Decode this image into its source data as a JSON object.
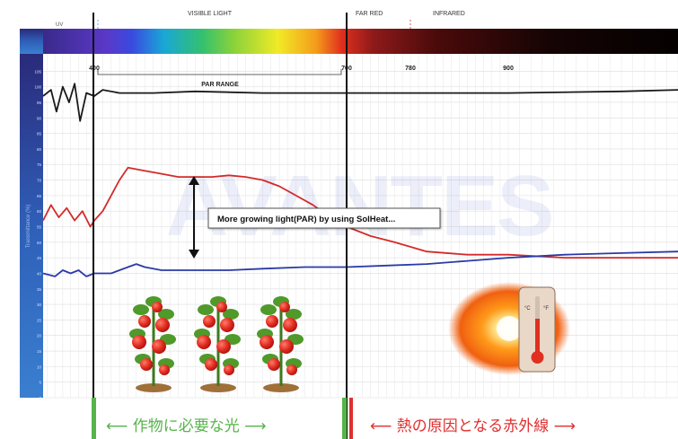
{
  "header": {
    "uv": "UV",
    "visible_light": "VISIBLE LIGHT",
    "far_red": "FAR RED",
    "infrared": "INFRARED"
  },
  "annotation": "More growing light(PAR) by using SolHeat...",
  "par_range_label": "PAR RANGE",
  "y_axis_label": "Transmittance (%)",
  "watermark": "AVANTES",
  "bottom_labels": {
    "left": "⟵  作物に必要な光  ⟶",
    "right": "⟵  熱の原因となる赤外線  ⟶"
  },
  "colors": {
    "green": "#56b44a",
    "red": "#e03030",
    "black_line": "#1a1a1a",
    "red_line": "#d42a2a",
    "blue_line": "#2a3aa8"
  },
  "icons": [
    "tomato-plant-icon",
    "tomato-plant-icon",
    "tomato-plant-icon",
    "thermometer-sun-icon"
  ],
  "chart_data": {
    "type": "line",
    "title": "",
    "xlabel": "",
    "ylabel": "Transmittance (%)",
    "x_ticks": [
      400,
      700,
      780,
      900
    ],
    "y_ticks": [
      0,
      5,
      10,
      15,
      20,
      25,
      30,
      35,
      40,
      45,
      50,
      55,
      60,
      65,
      70,
      75,
      80,
      85,
      90,
      95,
      100,
      105
    ],
    "xlim": [
      335,
      1050
    ],
    "ylim": [
      0,
      110
    ],
    "grid": true,
    "markers": [
      400,
      700
    ],
    "series": [
      {
        "color": "#1a1a1a",
        "x": [
          335,
          345,
          352,
          360,
          368,
          375,
          382,
          390,
          400,
          410,
          430,
          470,
          520,
          600,
          680,
          700,
          750,
          800,
          900,
          1000,
          1050
        ],
        "y": [
          97,
          99,
          92,
          100,
          95,
          101,
          89,
          98,
          97,
          99,
          98,
          98,
          98.5,
          98,
          98,
          98,
          98,
          98,
          98,
          98.5,
          99
        ]
      },
      {
        "color": "#d42a2a",
        "x": [
          335,
          345,
          355,
          365,
          375,
          385,
          395,
          400,
          410,
          420,
          430,
          440,
          460,
          480,
          500,
          520,
          540,
          560,
          580,
          600,
          620,
          640,
          660,
          680,
          700,
          730,
          760,
          800,
          850,
          900,
          950,
          1000,
          1050
        ],
        "y": [
          57,
          62,
          58,
          61,
          57,
          60,
          55,
          57,
          60,
          65,
          70,
          74,
          73,
          72,
          71,
          71,
          71,
          71.5,
          71,
          70,
          68,
          65,
          62,
          58,
          55,
          52,
          50,
          47,
          46,
          46,
          45,
          45,
          45
        ]
      },
      {
        "color": "#2a3aa8",
        "x": [
          335,
          350,
          360,
          370,
          380,
          390,
          400,
          420,
          430,
          440,
          450,
          460,
          480,
          520,
          560,
          600,
          650,
          700,
          750,
          800,
          850,
          900,
          950,
          1000,
          1050
        ],
        "y": [
          40,
          39,
          41,
          40,
          41,
          39,
          40,
          40,
          41,
          42,
          43,
          42,
          41,
          41,
          41,
          41.5,
          42,
          42,
          42.5,
          43,
          44,
          45,
          46,
          46.5,
          47
        ]
      }
    ]
  }
}
